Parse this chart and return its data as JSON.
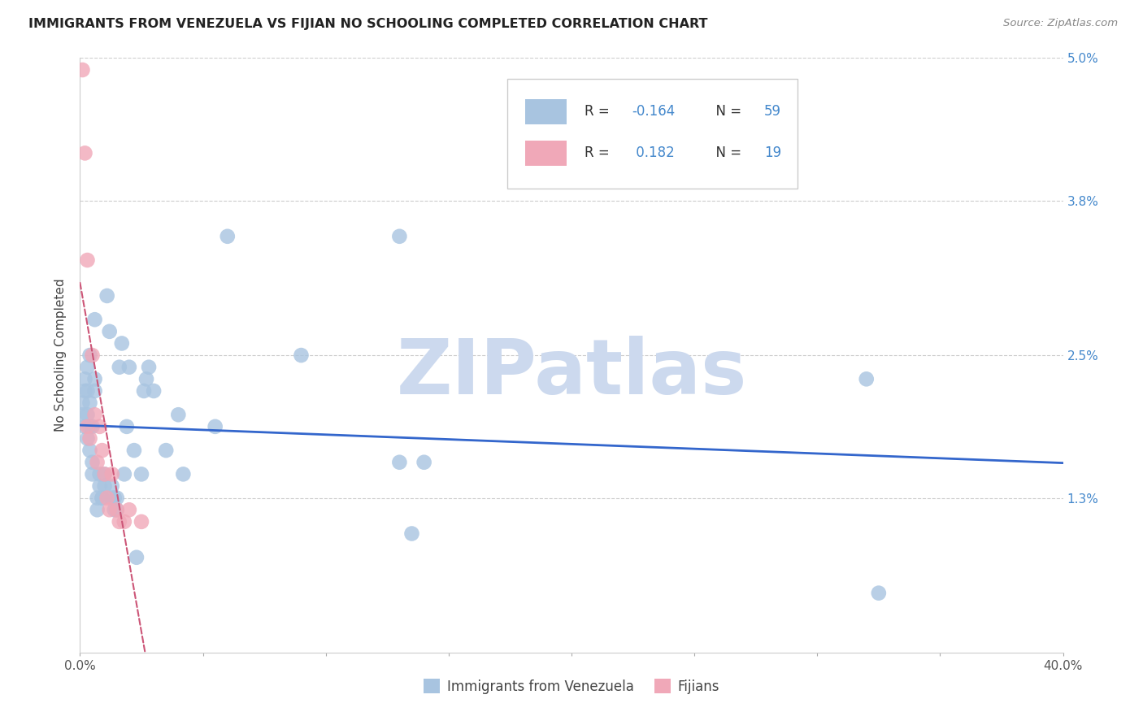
{
  "title": "IMMIGRANTS FROM VENEZUELA VS FIJIAN NO SCHOOLING COMPLETED CORRELATION CHART",
  "source": "Source: ZipAtlas.com",
  "ylabel": "No Schooling Completed",
  "xlim": [
    0.0,
    0.4
  ],
  "ylim": [
    0.0,
    0.05
  ],
  "xticks": [
    0.0,
    0.05,
    0.1,
    0.15,
    0.2,
    0.25,
    0.3,
    0.35,
    0.4
  ],
  "xticklabels": [
    "0.0%",
    "",
    "",
    "",
    "",
    "",
    "",
    "",
    "40.0%"
  ],
  "ytick_positions": [
    0.013,
    0.025,
    0.038,
    0.05
  ],
  "ytick_labels": [
    "1.3%",
    "2.5%",
    "3.8%",
    "5.0%"
  ],
  "blue_color": "#a8c4e0",
  "pink_color": "#f0a8b8",
  "trend_blue": "#3366cc",
  "trend_pink": "#cc5577",
  "watermark": "ZIPatlas",
  "watermark_color": "#ccd9ee",
  "legend_label1": "Immigrants from Venezuela",
  "legend_label2": "Fijians",
  "blue_x": [
    0.001,
    0.001,
    0.002,
    0.002,
    0.002,
    0.003,
    0.003,
    0.003,
    0.003,
    0.004,
    0.004,
    0.004,
    0.004,
    0.005,
    0.005,
    0.005,
    0.006,
    0.006,
    0.006,
    0.007,
    0.007,
    0.008,
    0.008,
    0.009,
    0.009,
    0.01,
    0.01,
    0.011,
    0.012,
    0.013,
    0.013,
    0.014,
    0.014,
    0.015,
    0.015,
    0.016,
    0.017,
    0.018,
    0.019,
    0.02,
    0.022,
    0.023,
    0.025,
    0.026,
    0.027,
    0.028,
    0.03,
    0.035,
    0.04,
    0.042,
    0.055,
    0.06,
    0.09,
    0.13,
    0.135,
    0.14,
    0.32,
    0.325,
    0.13
  ],
  "blue_y": [
    0.02,
    0.021,
    0.019,
    0.022,
    0.023,
    0.018,
    0.02,
    0.022,
    0.024,
    0.017,
    0.019,
    0.021,
    0.025,
    0.015,
    0.016,
    0.019,
    0.022,
    0.023,
    0.028,
    0.012,
    0.013,
    0.014,
    0.015,
    0.013,
    0.013,
    0.014,
    0.015,
    0.03,
    0.027,
    0.013,
    0.014,
    0.012,
    0.013,
    0.012,
    0.013,
    0.024,
    0.026,
    0.015,
    0.019,
    0.024,
    0.017,
    0.008,
    0.015,
    0.022,
    0.023,
    0.024,
    0.022,
    0.017,
    0.02,
    0.015,
    0.019,
    0.035,
    0.025,
    0.016,
    0.01,
    0.016,
    0.023,
    0.005,
    0.035
  ],
  "pink_x": [
    0.001,
    0.002,
    0.003,
    0.003,
    0.004,
    0.005,
    0.006,
    0.007,
    0.008,
    0.009,
    0.01,
    0.011,
    0.012,
    0.013,
    0.015,
    0.016,
    0.018,
    0.02,
    0.025
  ],
  "pink_y": [
    0.049,
    0.042,
    0.033,
    0.019,
    0.018,
    0.025,
    0.02,
    0.016,
    0.019,
    0.017,
    0.015,
    0.013,
    0.012,
    0.015,
    0.012,
    0.011,
    0.011,
    0.012,
    0.011
  ],
  "background_color": "#ffffff",
  "grid_color": "#cccccc"
}
